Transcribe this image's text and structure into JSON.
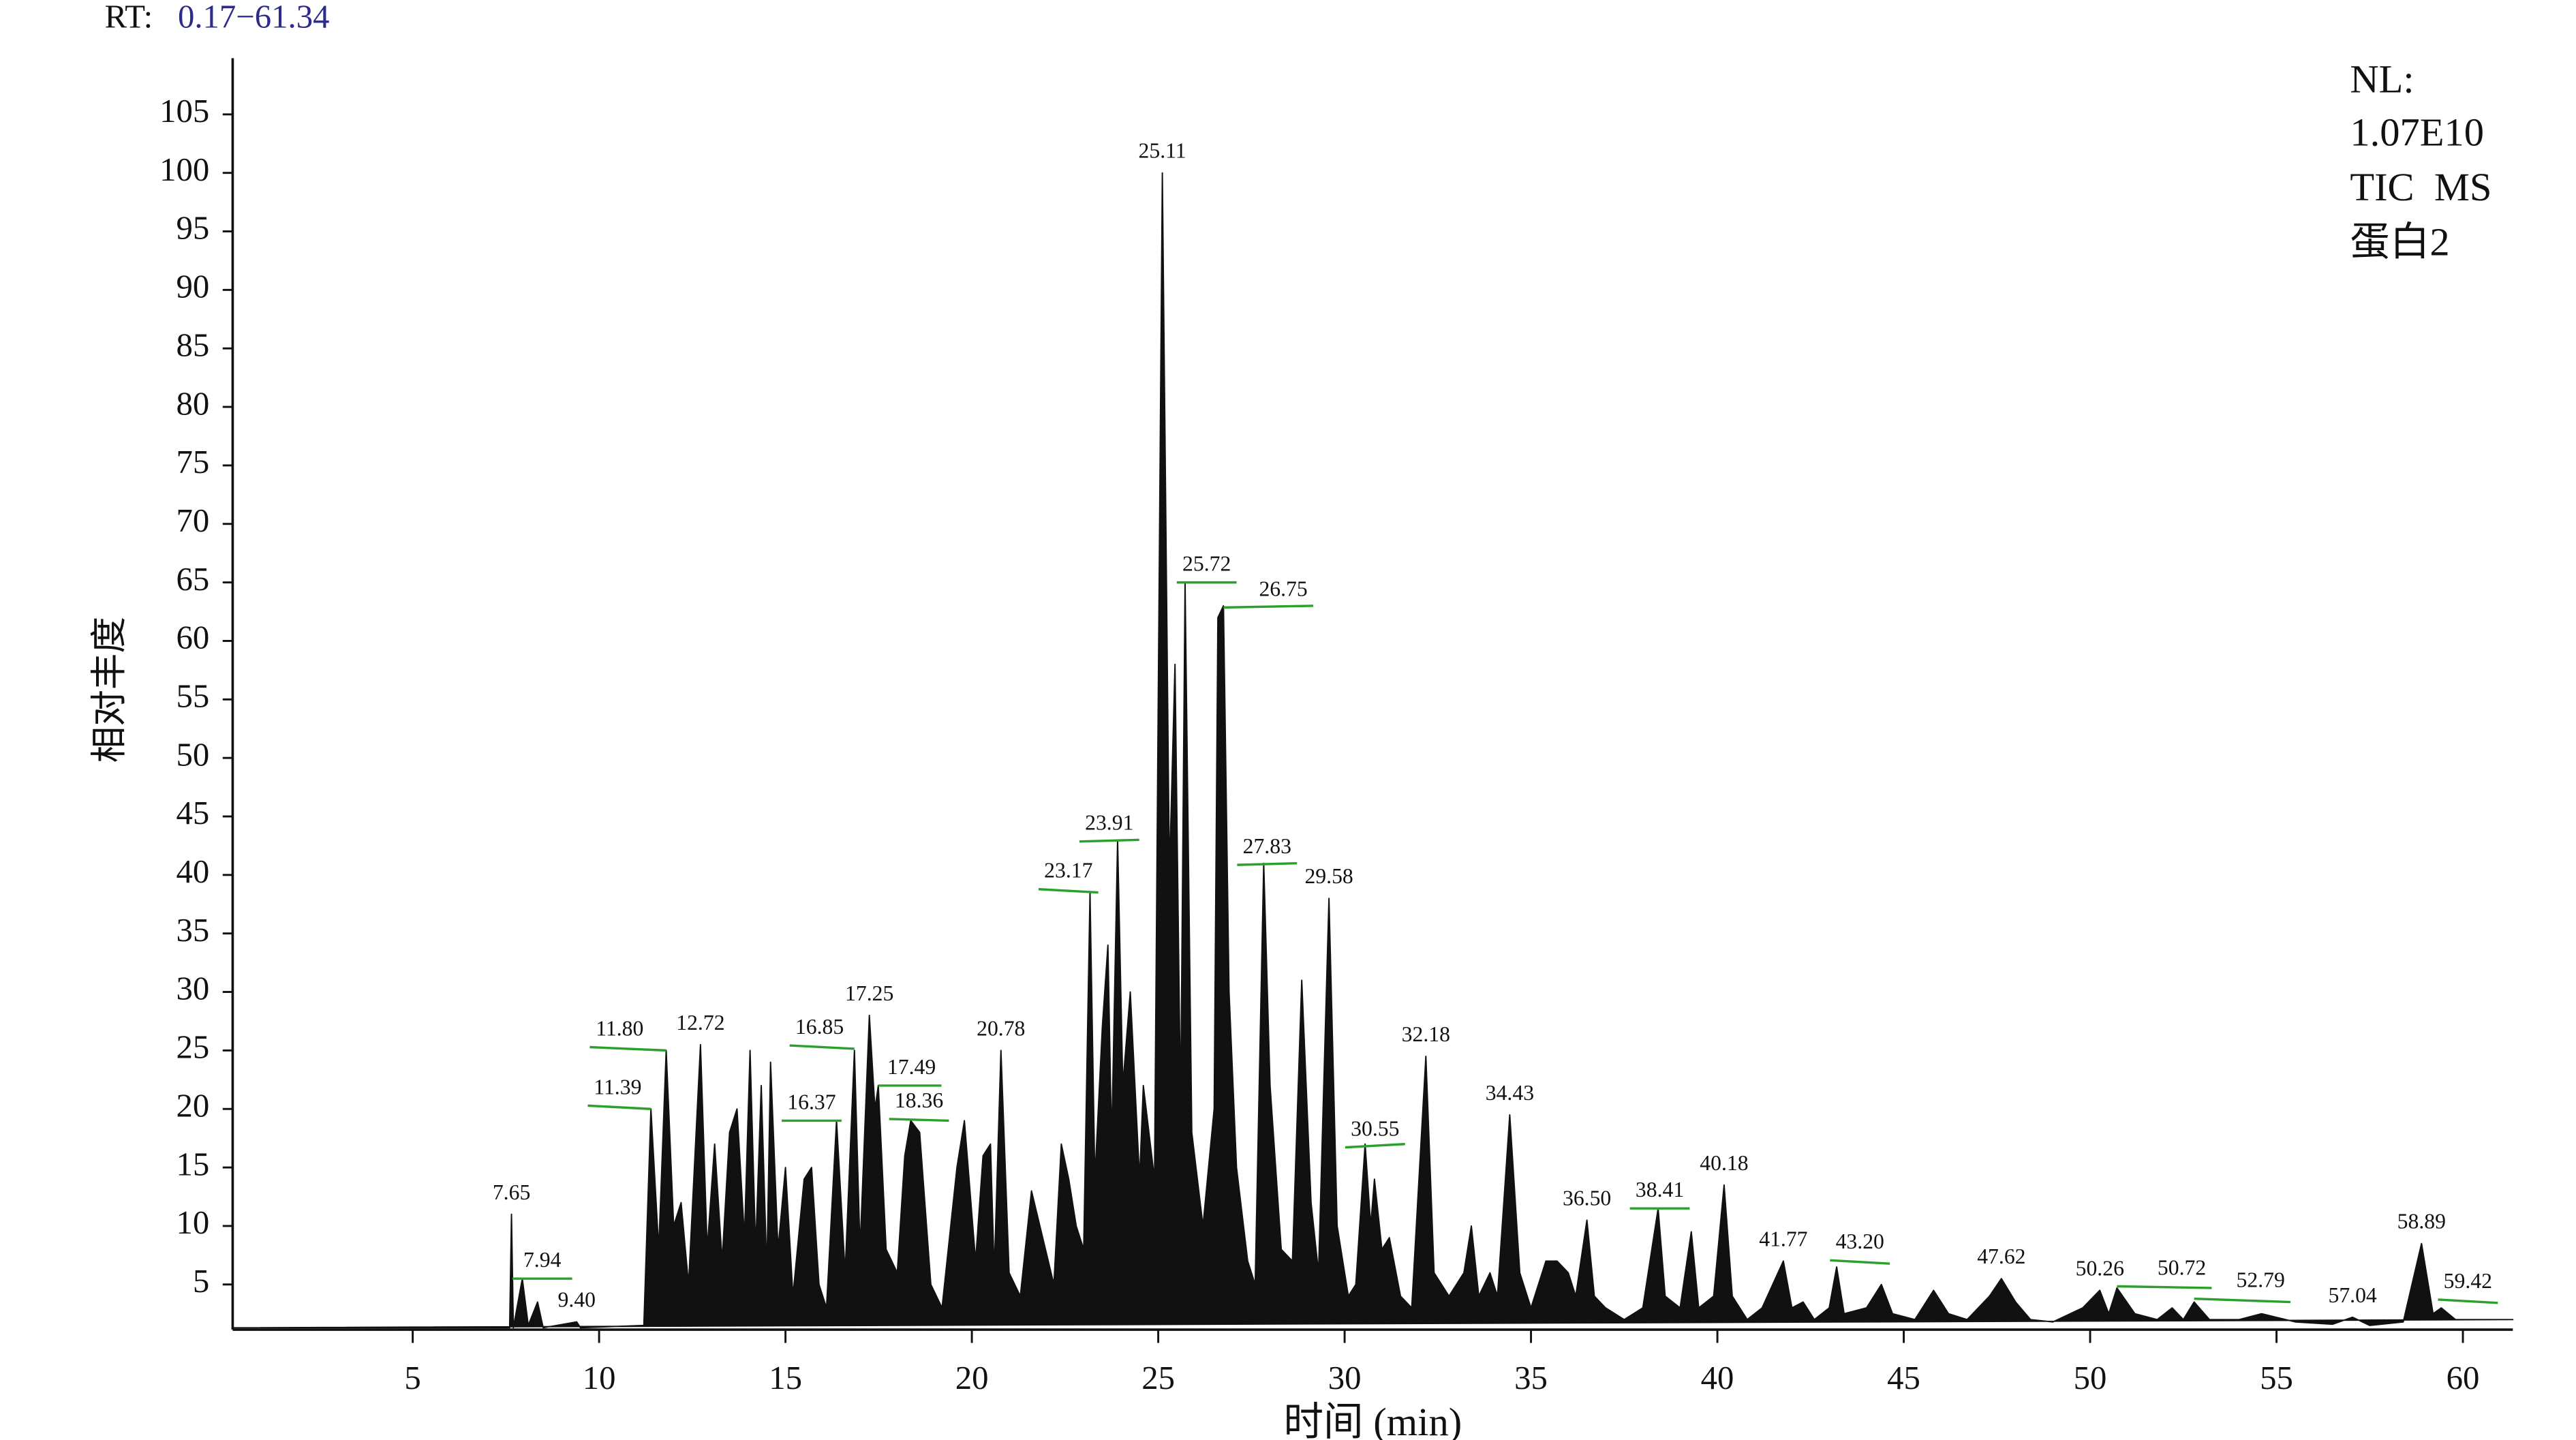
{
  "chart_data": {
    "type": "area",
    "rt_label": "RT:",
    "rt_range": "0.17−61.34",
    "info": [
      "NL:",
      "1.07E10",
      "TIC  MS",
      "蛋白2"
    ],
    "ylabel": "相对丰度",
    "xlabel": "时间 (min)",
    "color": "#111111",
    "label_color": "#2b2b8c",
    "leader_color": "#2ca02c",
    "xlim": [
      0.17,
      61.34
    ],
    "ylim": [
      1,
      110
    ],
    "xticks": [
      5,
      10,
      15,
      20,
      25,
      30,
      35,
      40,
      45,
      50,
      55,
      60
    ],
    "yticks": [
      5,
      10,
      15,
      20,
      25,
      30,
      35,
      40,
      45,
      50,
      55,
      60,
      65,
      70,
      75,
      80,
      85,
      90,
      95,
      100,
      105
    ],
    "x": [
      0.17,
      7.6,
      7.65,
      7.7,
      7.94,
      8.1,
      8.35,
      8.5,
      9.4,
      9.5,
      11.2,
      11.39,
      11.6,
      11.8,
      12.0,
      12.2,
      12.4,
      12.72,
      12.9,
      13.1,
      13.3,
      13.5,
      13.7,
      13.9,
      14.05,
      14.2,
      14.35,
      14.5,
      14.6,
      14.8,
      15.0,
      15.2,
      15.5,
      15.7,
      15.9,
      16.1,
      16.37,
      16.6,
      16.85,
      17.0,
      17.25,
      17.4,
      17.49,
      17.7,
      18.0,
      18.2,
      18.36,
      18.6,
      18.9,
      19.2,
      19.6,
      19.8,
      20.1,
      20.3,
      20.5,
      20.6,
      20.78,
      21.0,
      21.3,
      21.6,
      21.9,
      22.2,
      22.4,
      22.6,
      22.8,
      23.0,
      23.17,
      23.3,
      23.5,
      23.65,
      23.75,
      23.91,
      24.05,
      24.25,
      24.5,
      24.6,
      24.9,
      25.11,
      25.3,
      25.45,
      25.6,
      25.72,
      25.9,
      26.2,
      26.5,
      26.6,
      26.75,
      26.9,
      27.1,
      27.4,
      27.6,
      27.83,
      28.0,
      28.3,
      28.6,
      28.85,
      29.1,
      29.3,
      29.58,
      29.8,
      30.1,
      30.3,
      30.55,
      30.7,
      30.8,
      31.0,
      31.2,
      31.5,
      31.8,
      32.18,
      32.4,
      32.8,
      33.2,
      33.4,
      33.6,
      33.9,
      34.1,
      34.43,
      34.7,
      35.0,
      35.4,
      35.7,
      36.0,
      36.2,
      36.5,
      36.7,
      37.0,
      37.5,
      38.0,
      38.41,
      38.6,
      39.0,
      39.3,
      39.5,
      39.9,
      40.18,
      40.4,
      40.8,
      41.2,
      41.77,
      42.0,
      42.3,
      42.6,
      43.0,
      43.2,
      43.4,
      44.0,
      44.4,
      44.7,
      45.3,
      45.8,
      46.2,
      46.7,
      47.3,
      47.62,
      48.0,
      48.4,
      49.0,
      49.8,
      50.26,
      50.5,
      50.72,
      51.2,
      51.8,
      52.2,
      52.5,
      52.79,
      53.2,
      54.0,
      54.6,
      55.5,
      56.5,
      57.04,
      57.5,
      58.4,
      58.89,
      59.2,
      59.42,
      59.8,
      60.5,
      61.34
    ],
    "values": [
      1.3,
      1.3,
      11,
      1.3,
      5.5,
      1.5,
      3.5,
      1.3,
      1.8,
      1.3,
      1.5,
      20,
      8,
      25,
      10,
      12,
      5,
      25.5,
      8,
      17,
      7,
      18,
      20,
      9,
      25,
      8,
      22,
      6,
      24,
      8,
      15,
      4,
      14,
      15,
      5,
      3,
      19,
      6,
      25,
      8,
      28,
      20,
      22,
      8,
      6,
      16,
      19,
      18,
      5,
      3,
      15,
      19,
      7,
      16,
      17,
      6,
      25,
      6,
      4,
      13,
      9,
      5,
      17,
      14,
      10,
      8,
      38.5,
      14,
      27,
      34,
      17,
      43,
      22,
      30,
      14,
      22,
      14,
      100,
      40,
      58,
      20,
      65,
      18,
      10,
      20,
      62,
      63,
      30,
      15,
      7,
      5,
      41,
      22,
      8,
      7,
      31,
      12,
      6,
      38,
      10,
      4,
      5,
      17,
      10,
      14,
      8,
      9,
      4,
      3,
      24.5,
      6,
      4,
      6,
      10,
      4,
      6,
      4,
      19.5,
      6,
      3,
      7,
      7,
      6,
      4,
      10.5,
      4,
      3,
      2,
      3,
      11.5,
      4,
      3,
      9.5,
      3,
      4,
      13.5,
      4,
      2,
      3,
      7,
      3,
      3.5,
      2,
      3,
      6.5,
      2.5,
      3,
      5,
      2.5,
      2,
      4.5,
      2.5,
      2,
      4,
      5.5,
      3.5,
      2,
      1.8,
      3,
      4.5,
      2.5,
      4.7,
      2.5,
      2,
      3,
      2,
      3.5,
      2,
      2,
      2.5,
      1.8,
      1.6,
      2.2,
      1.5,
      1.8,
      8.5,
      2.5,
      3,
      2,
      2,
      2
    ],
    "peaks": [
      {
        "x": 7.65,
        "y": 11
      },
      {
        "x": 7.94,
        "y": 5.5
      },
      {
        "x": 9.4,
        "y": 1.8
      },
      {
        "x": 11.39,
        "y": 20
      },
      {
        "x": 11.8,
        "y": 25
      },
      {
        "x": 12.72,
        "y": 25.5
      },
      {
        "x": 16.37,
        "y": 19
      },
      {
        "x": 16.85,
        "y": 25
      },
      {
        "x": 17.25,
        "y": 28
      },
      {
        "x": 17.49,
        "y": 22
      },
      {
        "x": 18.36,
        "y": 19
      },
      {
        "x": 20.78,
        "y": 25
      },
      {
        "x": 23.17,
        "y": 38.5
      },
      {
        "x": 23.91,
        "y": 43
      },
      {
        "x": 25.11,
        "y": 100
      },
      {
        "x": 25.72,
        "y": 65
      },
      {
        "x": 26.75,
        "y": 63
      },
      {
        "x": 27.83,
        "y": 41
      },
      {
        "x": 29.58,
        "y": 38
      },
      {
        "x": 30.55,
        "y": 17
      },
      {
        "x": 32.18,
        "y": 24.5
      },
      {
        "x": 34.43,
        "y": 19.5
      },
      {
        "x": 36.5,
        "y": 10.5
      },
      {
        "x": 38.41,
        "y": 11.5
      },
      {
        "x": 40.18,
        "y": 13.5
      },
      {
        "x": 41.77,
        "y": 7
      },
      {
        "x": 43.2,
        "y": 6.5
      },
      {
        "x": 47.62,
        "y": 5.5
      },
      {
        "x": 50.26,
        "y": 4.5
      },
      {
        "x": 50.72,
        "y": 4.7
      },
      {
        "x": 52.79,
        "y": 3.5
      },
      {
        "x": 57.04,
        "y": 2.2
      },
      {
        "x": 58.89,
        "y": 8.5
      },
      {
        "x": 59.42,
        "y": 3
      }
    ],
    "peak_labels": [
      "7.65",
      "7.94",
      "9.40",
      "11.39",
      "11.80",
      "12.72",
      "16.37",
      "16.85",
      "17.25",
      "17.49",
      "18.36",
      "20.78",
      "23.17",
      "23.91",
      "25.11",
      "25.72",
      "26.75",
      "27.83",
      "29.58",
      "30.55",
      "32.18",
      "34.43",
      "36.50",
      "38.41",
      "40.18",
      "41.77",
      "43.20",
      "47.62",
      "50.26",
      "50.72",
      "52.79",
      "57.04",
      "58.89",
      "59.42"
    ]
  }
}
